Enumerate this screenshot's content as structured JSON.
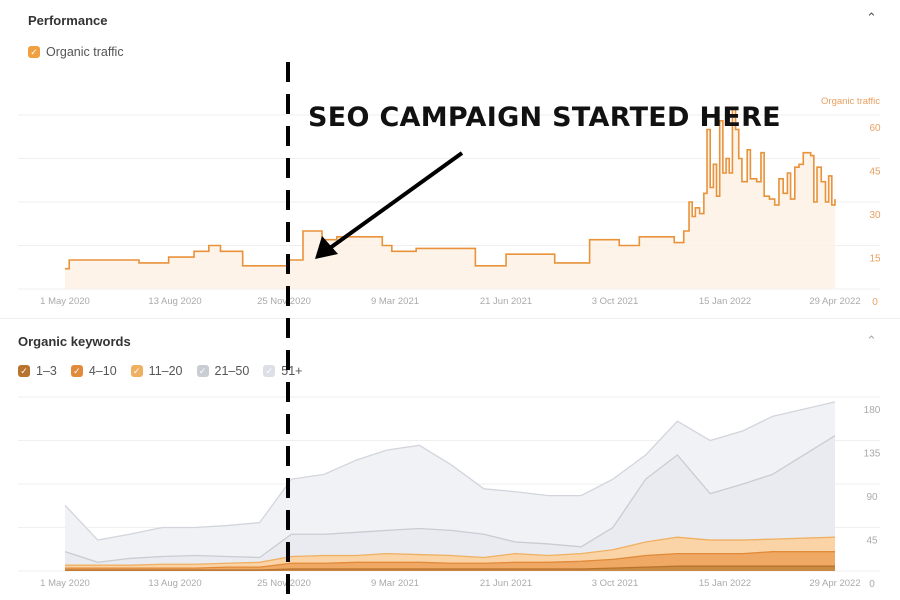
{
  "performance": {
    "title": "Performance",
    "legend_label": "Organic traffic",
    "axis_label": "Organic traffic",
    "collapse_icon": "chevron-up-icon"
  },
  "keywords": {
    "title": "Organic keywords",
    "collapse_icon": "chevron-up-icon",
    "legend": [
      {
        "label": "1–3",
        "color": "#b8732e"
      },
      {
        "label": "4–10",
        "color": "#e08a3a"
      },
      {
        "label": "11–20",
        "color": "#efb062"
      },
      {
        "label": "21–50",
        "color": "#c9ccd3"
      },
      {
        "label": "51+",
        "color": "#dcdfe5"
      }
    ]
  },
  "annotation": {
    "text": "SEO CAMPAIGN STARTED HERE"
  },
  "x_ticks": [
    "1 May 2020",
    "13 Aug 2020",
    "25 Nov 2020",
    "9 Mar 2021",
    "21 Jun 2021",
    "3 Oct 2021",
    "15 Jan 2022",
    "29 Apr 2022"
  ],
  "chart_data": [
    {
      "type": "line",
      "title": "Performance",
      "ylabel": "Organic traffic",
      "ylim": [
        0,
        60
      ],
      "y_ticks": [
        "60",
        "45",
        "30",
        "15",
        "0"
      ],
      "color": "#e8923a",
      "grid": true,
      "x_range": [
        "2020-05-01",
        "2022-04-29"
      ],
      "points": [
        [
          "2020-05-01",
          7
        ],
        [
          "2020-05-05",
          10
        ],
        [
          "2020-07-10",
          9
        ],
        [
          "2020-08-07",
          11
        ],
        [
          "2020-08-31",
          13
        ],
        [
          "2020-09-14",
          15
        ],
        [
          "2020-09-25",
          13
        ],
        [
          "2020-10-16",
          8
        ],
        [
          "2020-11-28",
          10
        ],
        [
          "2020-12-12",
          20
        ],
        [
          "2020-12-30",
          17
        ],
        [
          "2021-01-13",
          18
        ],
        [
          "2021-02-25",
          15
        ],
        [
          "2021-03-06",
          13
        ],
        [
          "2021-03-29",
          14
        ],
        [
          "2021-05-24",
          8
        ],
        [
          "2021-06-22",
          12
        ],
        [
          "2021-08-07",
          9
        ],
        [
          "2021-09-09",
          17
        ],
        [
          "2021-10-07",
          15
        ],
        [
          "2021-10-26",
          18
        ],
        [
          "2021-11-28",
          16
        ],
        [
          "2021-12-07",
          20
        ],
        [
          "2021-12-12",
          30
        ],
        [
          "2021-12-15",
          25
        ],
        [
          "2021-12-18",
          28
        ],
        [
          "2021-12-22",
          26
        ],
        [
          "2021-12-26",
          33
        ],
        [
          "2021-12-29",
          55
        ],
        [
          "2022-01-01",
          35
        ],
        [
          "2022-01-04",
          43
        ],
        [
          "2022-01-07",
          32
        ],
        [
          "2022-01-10",
          58
        ],
        [
          "2022-01-13",
          40
        ],
        [
          "2022-01-16",
          45
        ],
        [
          "2022-01-19",
          40
        ],
        [
          "2022-01-22",
          62
        ],
        [
          "2022-01-25",
          55
        ],
        [
          "2022-01-28",
          45
        ],
        [
          "2022-01-31",
          37
        ],
        [
          "2022-02-05",
          48
        ],
        [
          "2022-02-08",
          38
        ],
        [
          "2022-02-14",
          37
        ],
        [
          "2022-02-18",
          47
        ],
        [
          "2022-02-21",
          32
        ],
        [
          "2022-02-26",
          31
        ],
        [
          "2022-03-03",
          29
        ],
        [
          "2022-03-07",
          38
        ],
        [
          "2022-03-11",
          33
        ],
        [
          "2022-03-15",
          40
        ],
        [
          "2022-03-18",
          31
        ],
        [
          "2022-03-22",
          42
        ],
        [
          "2022-03-26",
          43
        ],
        [
          "2022-03-30",
          47
        ],
        [
          "2022-04-06",
          46
        ],
        [
          "2022-04-09",
          30
        ],
        [
          "2022-04-12",
          42
        ],
        [
          "2022-04-16",
          37
        ],
        [
          "2022-04-20",
          30
        ],
        [
          "2022-04-23",
          39
        ],
        [
          "2022-04-26",
          29
        ],
        [
          "2022-04-29",
          31
        ]
      ]
    },
    {
      "type": "area",
      "stacked": true,
      "title": "Organic keywords",
      "ylim": [
        0,
        180
      ],
      "y_ticks": [
        "180",
        "135",
        "90",
        "45",
        "0"
      ],
      "grid": true,
      "x": [
        "2020-05-01",
        "2020-06-01",
        "2020-07-01",
        "2020-08-01",
        "2020-09-01",
        "2020-10-01",
        "2020-11-01",
        "2020-12-01",
        "2021-01-01",
        "2021-02-01",
        "2021-03-01",
        "2021-04-01",
        "2021-05-01",
        "2021-06-01",
        "2021-07-01",
        "2021-08-01",
        "2021-09-01",
        "2021-10-01",
        "2021-11-01",
        "2021-12-01",
        "2022-01-01",
        "2022-02-01",
        "2022-03-01",
        "2022-04-29"
      ],
      "series": [
        {
          "name": "1–3",
          "values": [
            1,
            1,
            1,
            1,
            1,
            1,
            1,
            2,
            2,
            2,
            2,
            2,
            2,
            2,
            2,
            2,
            2,
            3,
            4,
            5,
            5,
            5,
            5,
            5
          ]
        },
        {
          "name": "4–10",
          "values": [
            2,
            2,
            2,
            2,
            2,
            3,
            3,
            6,
            6,
            7,
            7,
            7,
            6,
            6,
            7,
            7,
            8,
            9,
            12,
            13,
            13,
            13,
            15,
            15
          ]
        },
        {
          "name": "11–20",
          "values": [
            3,
            3,
            3,
            4,
            4,
            4,
            5,
            7,
            8,
            7,
            9,
            8,
            8,
            6,
            9,
            7,
            8,
            10,
            14,
            17,
            14,
            14,
            13,
            15
          ]
        },
        {
          "name": "21–50",
          "values": [
            14,
            3,
            7,
            8,
            9,
            7,
            5,
            23,
            22,
            24,
            24,
            27,
            26,
            24,
            12,
            12,
            7,
            23,
            65,
            85,
            48,
            58,
            67,
            105
          ]
        },
        {
          "name": "51+",
          "values": [
            48,
            23,
            25,
            30,
            29,
            32,
            36,
            57,
            62,
            75,
            83,
            86,
            68,
            47,
            52,
            50,
            53,
            50,
            25,
            35,
            55,
            55,
            60,
            35
          ]
        }
      ]
    }
  ]
}
